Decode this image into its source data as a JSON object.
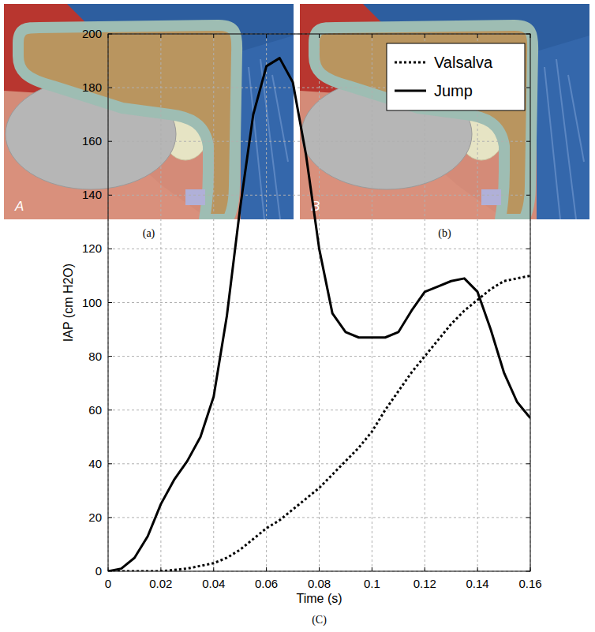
{
  "figure": {
    "panels": [
      {
        "letter": "A",
        "caption": "(a)"
      },
      {
        "letter": "B",
        "caption": "(b)"
      }
    ],
    "chart_caption": "(C)"
  },
  "chart_data": {
    "type": "line",
    "x_label": "Time (s)",
    "y_label": "IAP (cm H2O)",
    "x": [
      0,
      0.005,
      0.01,
      0.015,
      0.02,
      0.025,
      0.03,
      0.035,
      0.04,
      0.045,
      0.05,
      0.055,
      0.06,
      0.065,
      0.07,
      0.075,
      0.08,
      0.085,
      0.09,
      0.095,
      0.1,
      0.105,
      0.11,
      0.115,
      0.12,
      0.125,
      0.13,
      0.135,
      0.14,
      0.145,
      0.15,
      0.155,
      0.16
    ],
    "series": [
      {
        "name": "Valsalva",
        "color": "#000000",
        "line_style": "dotted",
        "values": [
          0,
          0,
          0,
          0,
          0,
          0.5,
          1,
          2,
          3,
          5,
          8,
          12,
          16,
          19,
          23,
          27,
          31,
          36,
          41,
          46,
          52,
          60,
          67,
          74,
          80,
          86,
          92,
          97,
          101,
          105,
          108,
          109,
          110
        ]
      },
      {
        "name": "Jump",
        "color": "#000000",
        "line_style": "solid",
        "values": [
          0,
          1,
          5,
          13,
          25,
          34,
          41,
          50,
          65,
          95,
          135,
          170,
          188,
          191,
          182,
          155,
          120,
          96,
          89,
          87,
          87,
          87,
          89,
          97,
          104,
          106,
          108,
          109,
          104,
          90,
          74,
          63,
          57
        ]
      }
    ],
    "xlim": [
      0,
      0.16
    ],
    "xticks": [
      0,
      0.02,
      0.04,
      0.06,
      0.08,
      0.1,
      0.12,
      0.14,
      0.16
    ],
    "ylim": [
      0,
      200
    ],
    "yticks": [
      0,
      20,
      40,
      60,
      80,
      100,
      120,
      140,
      160,
      180,
      200
    ],
    "grid": true,
    "legend": "upper right"
  }
}
